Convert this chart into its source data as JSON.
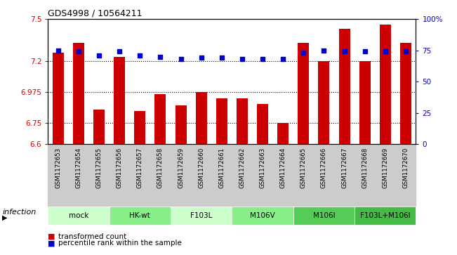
{
  "title": "GDS4998 / 10564211",
  "categories": [
    "GSM1172653",
    "GSM1172654",
    "GSM1172655",
    "GSM1172656",
    "GSM1172657",
    "GSM1172658",
    "GSM1172659",
    "GSM1172660",
    "GSM1172661",
    "GSM1172662",
    "GSM1172663",
    "GSM1172664",
    "GSM1172665",
    "GSM1172666",
    "GSM1172667",
    "GSM1172668",
    "GSM1172669",
    "GSM1172670"
  ],
  "bar_values": [
    7.26,
    7.33,
    6.85,
    7.23,
    6.84,
    6.96,
    6.88,
    6.975,
    6.93,
    6.93,
    6.89,
    6.75,
    7.33,
    7.2,
    7.43,
    7.2,
    7.46,
    7.33
  ],
  "percentile_values": [
    75,
    74,
    71,
    74,
    71,
    70,
    68,
    69,
    69,
    68,
    68,
    68,
    73,
    75,
    74,
    74,
    74,
    74
  ],
  "ylim_left": [
    6.6,
    7.5
  ],
  "ylim_right": [
    0,
    100
  ],
  "yticks_left": [
    6.6,
    6.75,
    6.975,
    7.2,
    7.5
  ],
  "ytick_labels_left": [
    "6.6",
    "6.75",
    "6.975",
    "7.2",
    "7.5"
  ],
  "yticks_right": [
    0,
    25,
    50,
    75,
    100
  ],
  "ytick_labels_right": [
    "0",
    "25",
    "50",
    "75",
    "100%"
  ],
  "bar_color": "#cc0000",
  "percentile_color": "#0000cc",
  "bar_bottom": 6.6,
  "group_info": [
    {
      "label": "mock",
      "start": 0,
      "end": 2,
      "color": "#ccffcc"
    },
    {
      "label": "HK-wt",
      "start": 3,
      "end": 5,
      "color": "#88ee88"
    },
    {
      "label": "F103L",
      "start": 6,
      "end": 8,
      "color": "#ccffcc"
    },
    {
      "label": "M106V",
      "start": 9,
      "end": 11,
      "color": "#88ee88"
    },
    {
      "label": "M106I",
      "start": 12,
      "end": 14,
      "color": "#55cc55"
    },
    {
      "label": "F103L+M106I",
      "start": 15,
      "end": 17,
      "color": "#44bb44"
    }
  ],
  "infection_label": "infection",
  "legend_bar_label": "transformed count",
  "legend_dot_label": "percentile rank within the sample",
  "tick_color_left": "#cc0000",
  "tick_color_right": "#0000cc",
  "xtick_bg_color": "#cccccc"
}
